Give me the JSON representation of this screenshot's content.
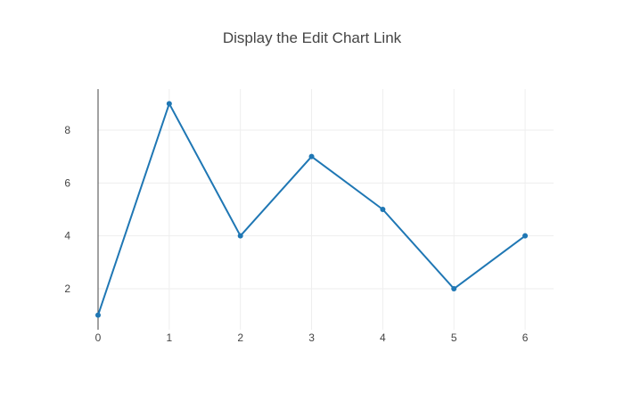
{
  "chart_data": {
    "type": "line",
    "title": "Display the Edit Chart Link",
    "xlabel": "",
    "ylabel": "",
    "x": [
      0,
      1,
      2,
      3,
      4,
      5,
      6
    ],
    "series": [
      {
        "values": [
          1,
          9,
          4,
          7,
          5,
          2,
          4
        ],
        "color": "#1f77b4",
        "markers": true
      }
    ],
    "xlim": [
      0,
      6.4
    ],
    "ylim": [
      0.45,
      9.55
    ],
    "xticks": [
      0,
      1,
      2,
      3,
      4,
      5,
      6
    ],
    "yticks": [
      2,
      4,
      6,
      8
    ],
    "grid": true,
    "zero_line_color": "#444444"
  }
}
